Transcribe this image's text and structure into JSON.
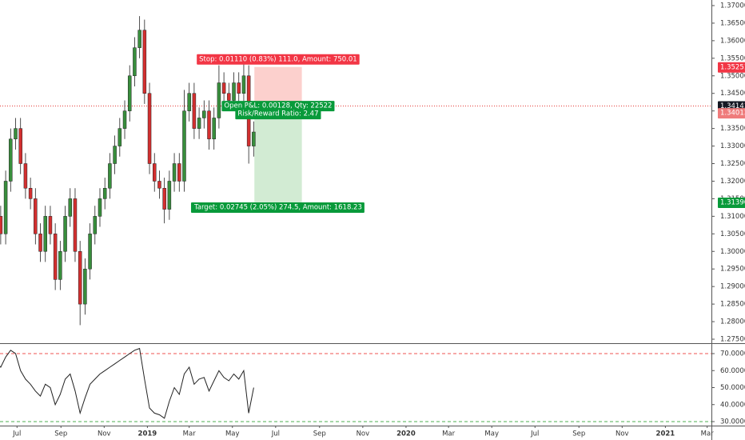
{
  "chart_data": [
    {
      "type": "candlestick",
      "up_color": "#388e3c",
      "down_color": "#d32f2f",
      "wick_color": "#222222",
      "xlim": [
        6,
        1010
      ],
      "ylim": [
        1.27409,
        1.37159
      ],
      "yticks": [
        {
          "value": 1.275,
          "label": "1.27500"
        },
        {
          "value": 1.28,
          "label": "1.28000"
        },
        {
          "value": 1.285,
          "label": "1.28500"
        },
        {
          "value": 1.29,
          "label": "1.29000"
        },
        {
          "value": 1.295,
          "label": "1.29500"
        },
        {
          "value": 1.3,
          "label": "1.30000"
        },
        {
          "value": 1.305,
          "label": "1.30500"
        },
        {
          "value": 1.31,
          "label": "1.31000"
        },
        {
          "value": 1.315,
          "label": "1.31500"
        },
        {
          "value": 1.32,
          "label": "1.32000"
        },
        {
          "value": 1.325,
          "label": "1.32500"
        },
        {
          "value": 1.33,
          "label": "1.33000"
        },
        {
          "value": 1.335,
          "label": "1.33500"
        },
        {
          "value": 1.34,
          "label": "1.34000"
        },
        {
          "value": 1.345,
          "label": "1.34500"
        },
        {
          "value": 1.35,
          "label": "1.35000"
        },
        {
          "value": 1.355,
          "label": "1.35500"
        },
        {
          "value": 1.36,
          "label": "1.36000"
        },
        {
          "value": 1.365,
          "label": "1.36500"
        },
        {
          "value": 1.37,
          "label": "1.37000"
        }
      ],
      "x": [
        0,
        7,
        14,
        21,
        28,
        35,
        42,
        49,
        56,
        63,
        70,
        77,
        84,
        91,
        98,
        105,
        112,
        119,
        126,
        133,
        140,
        147,
        154,
        161,
        168,
        175,
        182,
        189,
        196,
        203,
        210,
        217,
        224,
        231,
        238,
        245,
        252,
        259,
        266,
        273,
        280,
        287,
        294,
        301,
        308,
        315,
        322,
        329,
        336,
        343,
        350,
        357,
        364
      ],
      "open": [
        1.315,
        1.31,
        1.305,
        1.32,
        1.332,
        1.335,
        1.325,
        1.318,
        1.315,
        1.305,
        1.3,
        1.31,
        1.305,
        1.292,
        1.3,
        1.31,
        1.315,
        1.3,
        1.285,
        1.295,
        1.305,
        1.31,
        1.315,
        1.318,
        1.325,
        1.33,
        1.335,
        1.34,
        1.35,
        1.358,
        1.363,
        1.345,
        1.325,
        1.32,
        1.318,
        1.312,
        1.32,
        1.325,
        1.32,
        1.34,
        1.345,
        1.335,
        1.338,
        1.34,
        1.332,
        1.338,
        1.348,
        1.345,
        1.343,
        1.348,
        1.345,
        1.35,
        1.33
      ],
      "high": [
        1.318,
        1.313,
        1.323,
        1.335,
        1.338,
        1.338,
        1.328,
        1.321,
        1.318,
        1.308,
        1.313,
        1.313,
        1.308,
        1.303,
        1.313,
        1.318,
        1.318,
        1.303,
        1.298,
        1.308,
        1.313,
        1.318,
        1.321,
        1.328,
        1.333,
        1.338,
        1.343,
        1.353,
        1.361,
        1.367,
        1.366,
        1.348,
        1.328,
        1.323,
        1.321,
        1.323,
        1.328,
        1.328,
        1.346,
        1.348,
        1.348,
        1.341,
        1.343,
        1.343,
        1.341,
        1.353,
        1.351,
        1.348,
        1.351,
        1.351,
        1.356,
        1.353,
        1.337
      ],
      "low": [
        1.307,
        1.302,
        1.302,
        1.317,
        1.329,
        1.322,
        1.315,
        1.312,
        1.302,
        1.297,
        1.297,
        1.302,
        1.289,
        1.289,
        1.297,
        1.307,
        1.297,
        1.279,
        1.282,
        1.292,
        1.302,
        1.307,
        1.312,
        1.315,
        1.322,
        1.327,
        1.332,
        1.337,
        1.347,
        1.355,
        1.342,
        1.322,
        1.317,
        1.315,
        1.308,
        1.309,
        1.317,
        1.317,
        1.317,
        1.337,
        1.332,
        1.332,
        1.335,
        1.329,
        1.329,
        1.335,
        1.342,
        1.34,
        1.34,
        1.342,
        1.342,
        1.325,
        1.327
      ],
      "close": [
        1.31,
        1.305,
        1.32,
        1.332,
        1.335,
        1.325,
        1.318,
        1.315,
        1.305,
        1.3,
        1.31,
        1.305,
        1.292,
        1.3,
        1.31,
        1.315,
        1.3,
        1.285,
        1.295,
        1.305,
        1.31,
        1.315,
        1.318,
        1.325,
        1.33,
        1.335,
        1.34,
        1.35,
        1.358,
        1.363,
        1.345,
        1.325,
        1.32,
        1.318,
        1.312,
        1.32,
        1.325,
        1.32,
        1.34,
        1.345,
        1.335,
        1.338,
        1.34,
        1.332,
        1.338,
        1.348,
        1.345,
        1.343,
        1.348,
        1.345,
        1.35,
        1.33,
        1.334
      ],
      "last_price": 1.34141,
      "position": {
        "x_range": [
          365,
          432
        ],
        "entry": 1.34013,
        "stop": 1.35251,
        "target": 1.31396,
        "stop_label": "Stop: 0.01110 (0.83%) 111.0, Amount: 750.01",
        "pnl_label": "Open P&L: 0.00128, Qty: 22522",
        "ratio_label": "Risk/Reward Ratio: 2.47",
        "target_label": "Target: 0.02745 (2.05%) 274.5, Amount: 1618.23"
      }
    },
    {
      "type": "line",
      "color": "#222222",
      "xlim": [
        6,
        1010
      ],
      "ylim": [
        27.65,
        75.65
      ],
      "yticks": [
        {
          "value": 30,
          "label": "30.0000"
        },
        {
          "value": 40,
          "label": "40.0000"
        },
        {
          "value": 50,
          "label": "50.0000"
        },
        {
          "value": 60,
          "label": "60.0000"
        },
        {
          "value": 70,
          "label": "70.0000"
        }
      ],
      "levels": [
        70,
        30
      ],
      "level_colors": [
        "#ef5350",
        "#4caf50"
      ],
      "xticks": [
        {
          "value": 30,
          "label": "Jul"
        },
        {
          "value": 92,
          "label": "Sep"
        },
        {
          "value": 153,
          "label": "Nov"
        },
        {
          "value": 214,
          "label": "2019"
        },
        {
          "value": 273,
          "label": "Mar"
        },
        {
          "value": 334,
          "label": "May"
        },
        {
          "value": 395,
          "label": "Jul"
        },
        {
          "value": 457,
          "label": "Sep"
        },
        {
          "value": 518,
          "label": "Nov"
        },
        {
          "value": 579,
          "label": "2020"
        },
        {
          "value": 639,
          "label": "Mar"
        },
        {
          "value": 700,
          "label": "May"
        },
        {
          "value": 761,
          "label": "Jul"
        },
        {
          "value": 823,
          "label": "Sep"
        },
        {
          "value": 884,
          "label": "Nov"
        },
        {
          "value": 945,
          "label": "2021"
        },
        {
          "value": 1004,
          "label": "Mar"
        }
      ],
      "x": [
        0,
        7,
        14,
        21,
        28,
        35,
        42,
        49,
        56,
        63,
        70,
        77,
        84,
        91,
        98,
        105,
        112,
        119,
        126,
        133,
        140,
        147,
        154,
        161,
        168,
        175,
        182,
        189,
        196,
        203,
        210,
        217,
        224,
        231,
        238,
        245,
        252,
        259,
        266,
        273,
        280,
        287,
        294,
        301,
        308,
        315,
        322,
        329,
        336,
        343,
        350,
        357,
        364
      ],
      "values": [
        65,
        62,
        68,
        72,
        70,
        60,
        55,
        52,
        48,
        45,
        52,
        50,
        40,
        46,
        55,
        58,
        48,
        35,
        44,
        52,
        55,
        58,
        60,
        62,
        64,
        66,
        68,
        70,
        72,
        73,
        55,
        38,
        35,
        34,
        32,
        42,
        50,
        46,
        58,
        62,
        52,
        55,
        56,
        48,
        54,
        60,
        56,
        54,
        58,
        55,
        60,
        35,
        50
      ]
    }
  ]
}
